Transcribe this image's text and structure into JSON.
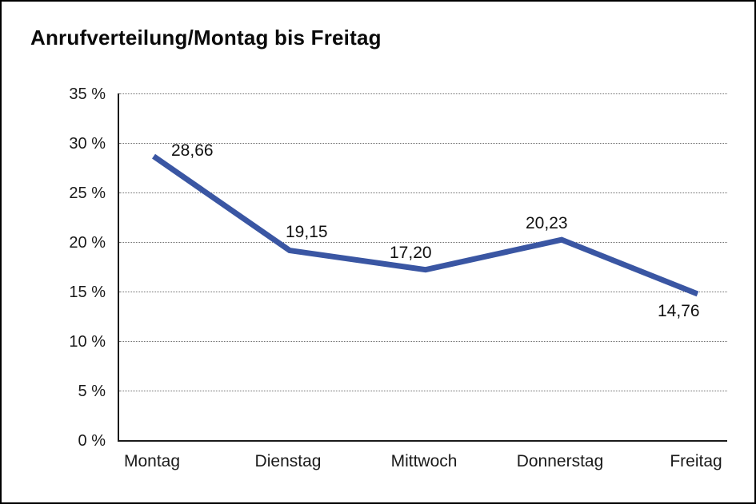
{
  "title": "Anrufverteilung/Montag bis Freitag",
  "chart_data": {
    "type": "line",
    "title": "Anrufverteilung/Montag bis Freitag",
    "categories": [
      "Montag",
      "Dienstag",
      "Mittwoch",
      "Donnerstag",
      "Freitag"
    ],
    "values": [
      28.66,
      19.15,
      17.2,
      20.23,
      14.76
    ],
    "point_labels": [
      "28,66",
      "19,15",
      "17,20",
      "20,23",
      "14,76"
    ],
    "xlabel": "",
    "ylabel": "",
    "ylim": [
      0,
      35
    ],
    "ytick_step": 5,
    "ytick_labels": [
      "0 %",
      "5 %",
      "10 %",
      "15 %",
      "20 %",
      "25 %",
      "30 %",
      "35 %"
    ],
    "grid": "horizontal-dotted",
    "legend": "none",
    "line_color": "#3a56a3",
    "axis_color": "#1a1a1a",
    "background_color": "#ffffff"
  }
}
